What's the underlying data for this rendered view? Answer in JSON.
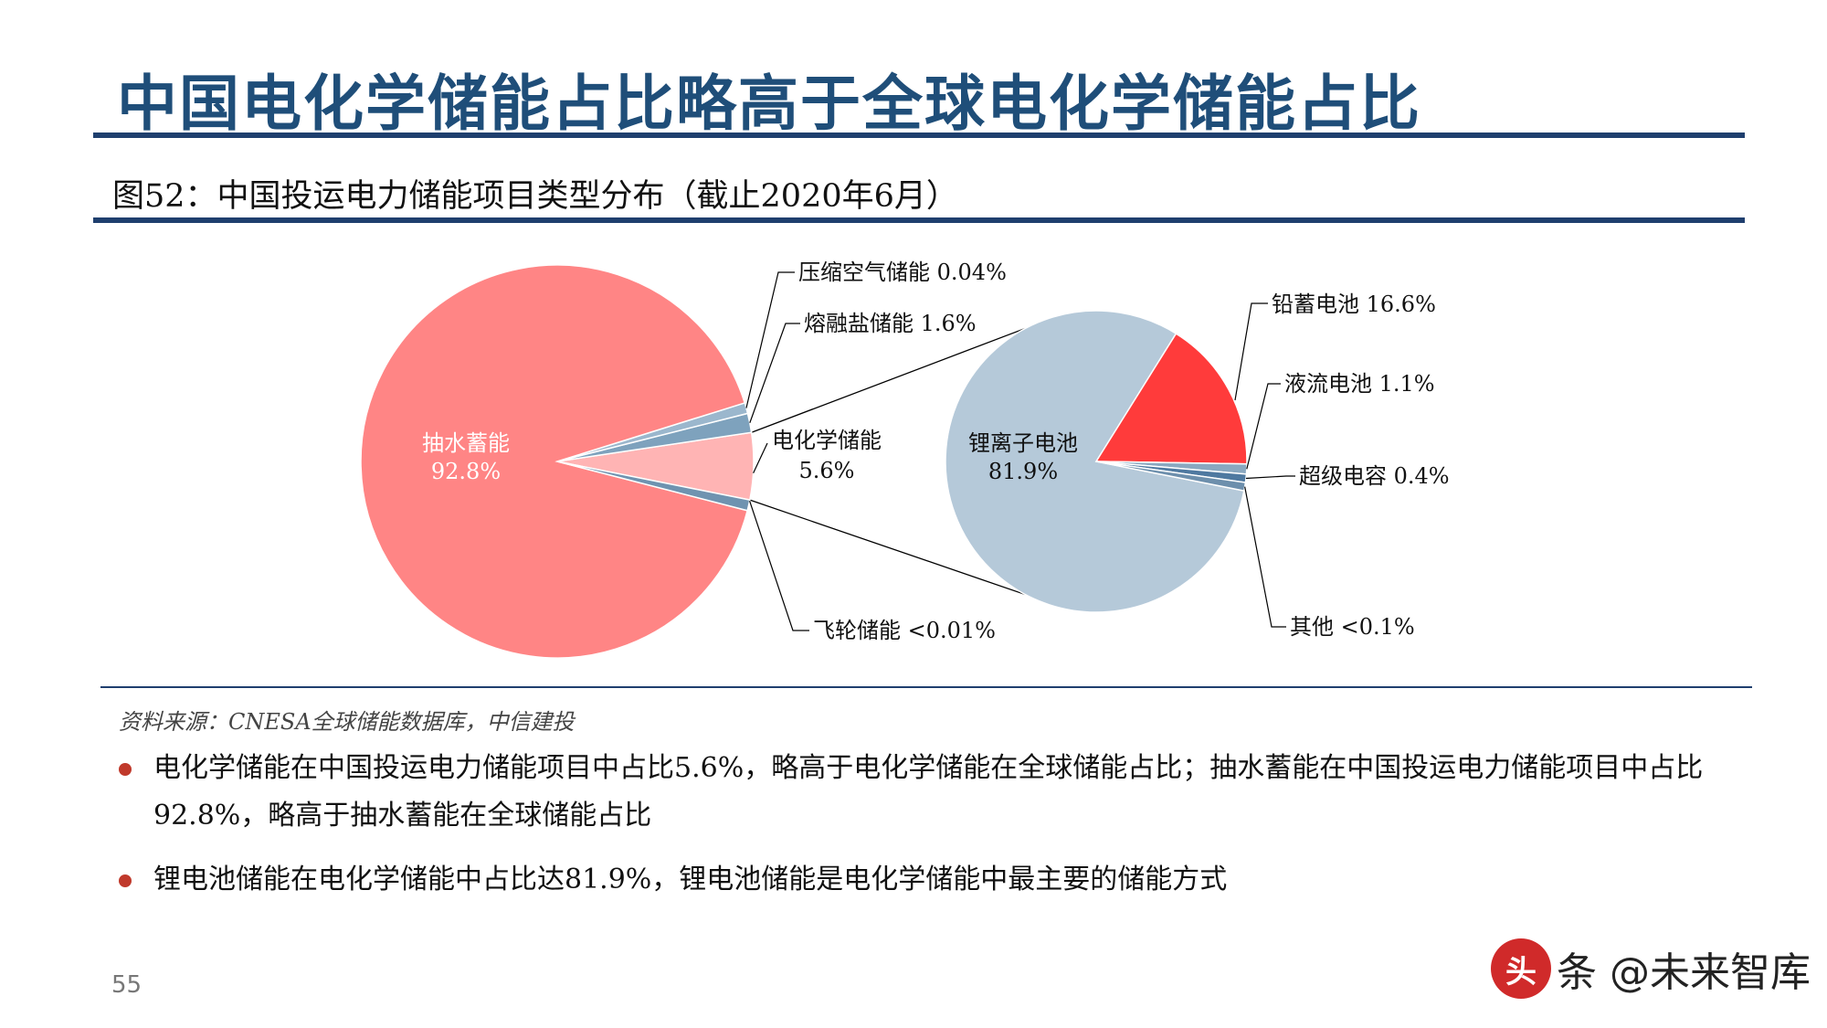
{
  "title": "中国电化学储能占比略高于全球电化学储能占比",
  "figure_caption": "图52：中国投运电力储能项目类型分布（截止2020年6月）",
  "chart_data": [
    {
      "type": "pie",
      "categories": [
        "抽水蓄能",
        "电化学储能",
        "压缩空气储能",
        "熔融盐储能",
        "飞轮储能"
      ],
      "value_labels": [
        "92.8%",
        "5.6%",
        "0.04%",
        "1.6%",
        "<0.01%"
      ],
      "values": [
        92.8,
        5.6,
        0.04,
        1.6,
        0.01
      ],
      "colors": [
        "#ff8585",
        "#ffb4b4",
        "#9bb7cd",
        "#7ea2bd",
        "#6f93b0"
      ]
    },
    {
      "type": "pie",
      "parent_category": "电化学储能",
      "categories": [
        "锂离子电池",
        "铅蓄电池",
        "液流电池",
        "超级电容",
        "其他"
      ],
      "value_labels": [
        "81.9%",
        "16.6%",
        "1.1%",
        "0.4%",
        "<0.1%"
      ],
      "values": [
        81.9,
        16.6,
        1.1,
        0.4,
        0.1
      ],
      "colors": [
        "#b5c9d9",
        "#ff3b3b",
        "#8aa8c0",
        "#4f79a0",
        "#6d8fac"
      ]
    }
  ],
  "source": "资料来源：CNESA全球储能数据库，中信建投",
  "bullets": [
    "电化学储能在中国投运电力储能项目中占比5.6%，略高于电化学储能在全球储能占比；抽水蓄能在中国投运电力储能项目中占比92.8%，略高于抽水蓄能在全球储能占比",
    "锂电池储能在电化学储能中占比达81.9%，锂电池储能是电化学储能中最主要的储能方式"
  ],
  "page_number": "55",
  "watermark": {
    "seal_text": "头",
    "text": "条 @未来智库"
  },
  "colors": {
    "title": "#1f4e79",
    "rule": "#1f3f6e",
    "bullet_dot": "#c0392b"
  }
}
